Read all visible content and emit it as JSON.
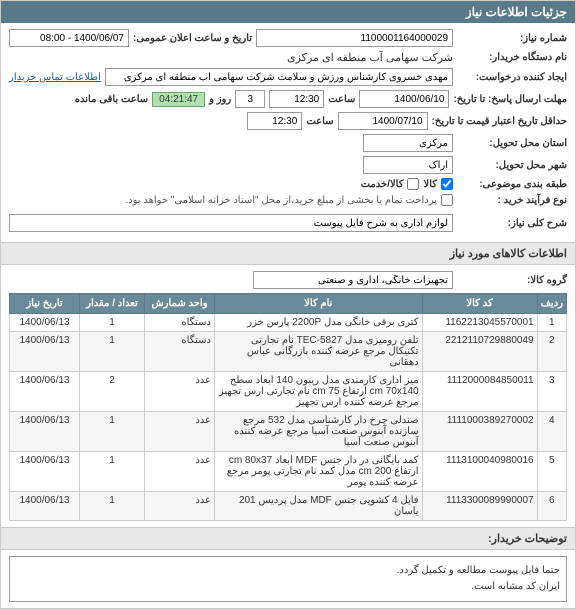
{
  "panel_title": "جزئیات اطلاعات نیاز",
  "labels": {
    "req_number": "شماره نیاز:",
    "announce_dt": "تاریخ و ساعت اعلان عمومی:",
    "buyer_name": "نام دستگاه خریدار:",
    "requester": "ایجاد کننده درخواست:",
    "buyer_contact": "اطلاعات تماس خریدار",
    "deadline_reply": "مهلت ارسال پاسخ: تا تاریخ:",
    "time_lbl": "ساعت",
    "days_unit": "روز و",
    "time_remaining": "ساعت باقی مانده",
    "validity": "حداقل تاریخ اعتبار قیمت تا تاریخ:",
    "province": "استان محل تحویل:",
    "city": "شهر محل تحویل:",
    "category": "طبقه بندی موضوعی:",
    "purchase_type": "نوع فرآیند خرید :",
    "partial_note": "پرداخت تمام یا بخشی از مبلغ خرید،از محل \"اسناد خزانه اسلامی\" خواهد بود.",
    "title": "شرح کلی نیاز:",
    "group": "گروه کالا:",
    "section_goods": "اطلاعات کالاهای مورد نیاز",
    "desc_header": "توضیحات خریدار:"
  },
  "values": {
    "req_number": "1100001164000029",
    "announce_date": "1400/06/07 - 08:00",
    "buyer_name": "شرکت سهامی آب منطقه ای مرکزی",
    "requester": "مهدی خسروی کارشناس ورزش و سلامت شرکت سهامی آب منطقه ای مرکزی",
    "deadline_date": "1400/06/10",
    "deadline_time": "12:30",
    "days_remaining": "3",
    "countdown": "04:21:47",
    "validity_date": "1400/07/10",
    "validity_time": "12:30",
    "province": "مرکزی",
    "city": "اراک",
    "cat_goods": "کالا",
    "cat_service": "کالا/خدمت",
    "title": "لوازم اداری به شرح فایل پیوست",
    "group": "تجهیزات خانگی، اداری و صنعتی",
    "description_l1": "حتما فایل پیوست مطالعه و تکمیل گردد.",
    "description_l2": "ایران کد مشابه است."
  },
  "table": {
    "headers": {
      "idx": "ردیف",
      "code": "کد کالا",
      "name": "نام کالا",
      "unit": "واحد شمارش",
      "qty": "تعداد / مقدار",
      "date": "تاریخ نیاز"
    },
    "rows": [
      {
        "idx": "1",
        "code": "1162213045570001",
        "name": "کتری برقی خانگی مدل 2200P پارس خزر",
        "unit": "دستگاه",
        "qty": "1",
        "date": "1400/06/13"
      },
      {
        "idx": "2",
        "code": "2212110729880049",
        "name": "تلفن رومیزی مدل TEC-5827 نام تجارتی تکنیکال مرجع عرضه کننده بازرگانی عباس دهقانی",
        "unit": "دستگاه",
        "qty": "1",
        "date": "1400/06/13"
      },
      {
        "idx": "3",
        "code": "1112000084850011",
        "name": "میز اداری کارمندی مدل ریبون 140 ابعاد سطح cm 70x140 ارتفاع cm 75 نام تجارتی ارس تجهیز مرجع عرضه کننده ارس تجهیز",
        "unit": "عدد",
        "qty": "2",
        "date": "1400/06/13"
      },
      {
        "idx": "4",
        "code": "1111000389270002",
        "name": "صندلی چرخ دار کارشناسی مدل 532 مرجع سازنده آبنوس صنعت آسیا مرجع عرضه کننده آبنوس صنعت آسیا",
        "unit": "عدد",
        "qty": "1",
        "date": "1400/06/13"
      },
      {
        "idx": "5",
        "code": "1113100040980016",
        "name": "کمد بایگانی در دار جنس MDF ابعاد cm 80x37 ارتفاع cm 200 مدل کمد نام تجارتی پومر مرجع عرضه کننده پومر",
        "unit": "عدد",
        "qty": "1",
        "date": "1400/06/13"
      },
      {
        "idx": "6",
        "code": "1113300089990007",
        "name": "فایل 4 کشویی جنس MDF مدل پردیس 201 یاسان",
        "unit": "عدد",
        "qty": "1",
        "date": "1400/06/13"
      }
    ]
  }
}
